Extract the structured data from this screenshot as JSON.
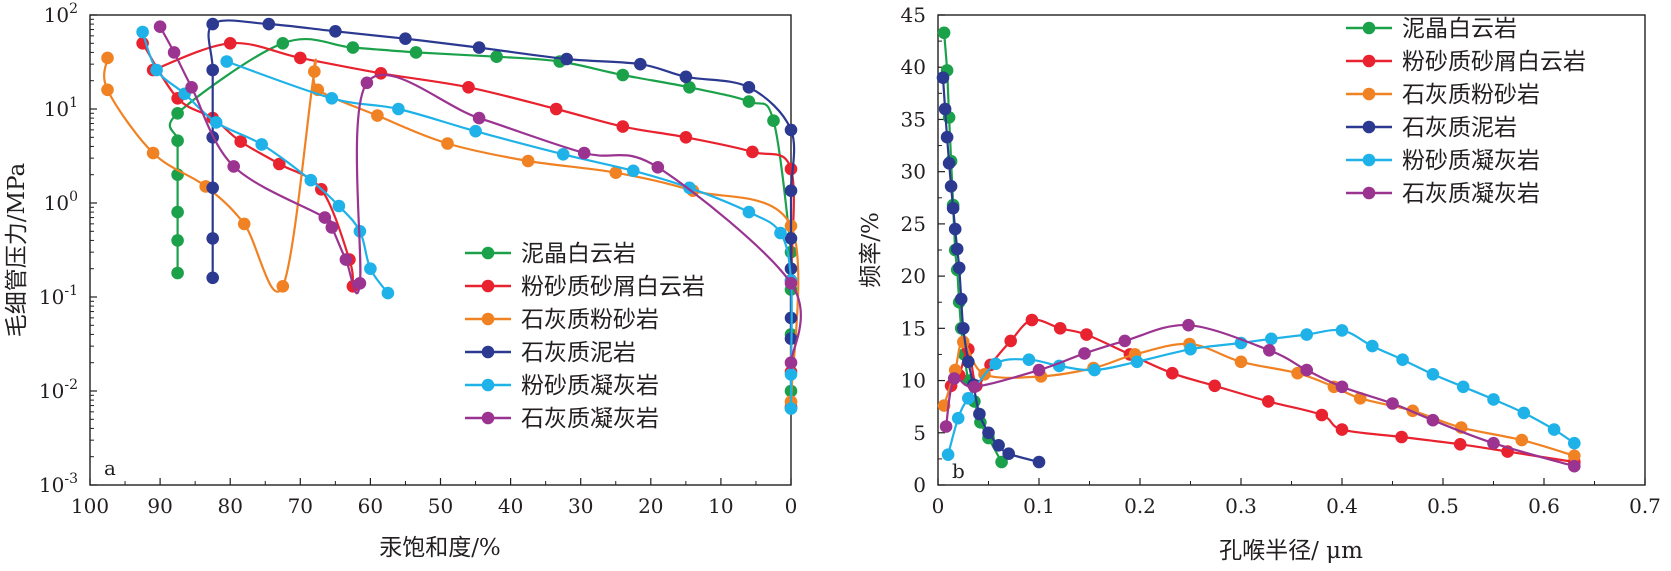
{
  "series_colors": [
    "#1aa14a",
    "#e8222f",
    "#f08224",
    "#2b3990",
    "#1fb2e8",
    "#9b3391"
  ],
  "chart_data": [
    {
      "type": "line",
      "panel_label": "a",
      "xlabel": "汞饱和度/%",
      "ylabel": "毛细管压力/MPa",
      "xlim": [
        100,
        0
      ],
      "ylim": [
        0.001,
        100
      ],
      "yscale": "log",
      "x_ticks": [
        "100",
        "90",
        "80",
        "70",
        "60",
        "50",
        "40",
        "30",
        "20",
        "10",
        "0"
      ],
      "y_ticks": [
        {
          "base": "10",
          "exp": "-3"
        },
        {
          "base": "10",
          "exp": "-2"
        },
        {
          "base": "10",
          "exp": "-1"
        },
        {
          "base": "10",
          "exp": "0"
        },
        {
          "base": "10",
          "exp": "1"
        },
        {
          "base": "10",
          "exp": "2"
        }
      ],
      "legend_position": "bottom-right",
      "series": [
        {
          "name": "泥晶白云岩",
          "x": [
            87.5,
            87.5,
            87.5,
            87.5,
            87.5,
            87.5,
            72.5,
            62.5,
            53.5,
            42,
            33,
            24,
            14.5,
            6,
            2.5,
            0,
            0,
            0,
            0,
            0
          ],
          "y": [
            0.18,
            0.4,
            0.8,
            2,
            4.6,
            9,
            50,
            45,
            40,
            36,
            32,
            23,
            17,
            12,
            7.5,
            0.3,
            0.12,
            0.04,
            0.01,
            0.0066
          ]
        },
        {
          "name": "粉砂质砂屑白云岩",
          "x": [
            92.5,
            87.5,
            82.5,
            78.5,
            73,
            67,
            63,
            62.5,
            91,
            80,
            70,
            58.5,
            46,
            33.5,
            24,
            15,
            5.5,
            0,
            0,
            0,
            0
          ],
          "y": [
            50,
            13,
            8,
            4.5,
            2.6,
            1.4,
            0.25,
            0.13,
            26,
            50,
            35,
            24,
            17,
            10,
            6.5,
            5,
            3.5,
            2.3,
            0.15,
            0.016,
            0.0068
          ]
        },
        {
          "name": "石灰质粉砂岩",
          "x": [
            97.5,
            97.5,
            91,
            83.5,
            78,
            72.5,
            68,
            67.5,
            59,
            49,
            37.5,
            25,
            14,
            0,
            0
          ],
          "y": [
            35,
            16,
            3.4,
            1.5,
            0.6,
            0.13,
            25,
            16,
            8.5,
            4.3,
            2.8,
            2.1,
            1.35,
            0.57,
            0.0077
          ]
        },
        {
          "name": "石灰质泥岩",
          "x": [
            82.5,
            82.5,
            82.5,
            82.5,
            82.5,
            82.5,
            74.5,
            65,
            55,
            44.5,
            32,
            21.5,
            15,
            6,
            0,
            0,
            0,
            0,
            0,
            0
          ],
          "y": [
            0.16,
            0.42,
            1.45,
            5,
            26,
            80,
            80,
            67,
            56,
            45,
            34,
            30,
            22,
            17,
            6,
            1.35,
            0.42,
            0.2,
            0.06,
            0.036
          ]
        },
        {
          "name": "粉砂质凝灰岩",
          "x": [
            92.5,
            90.5,
            86.5,
            82,
            75.5,
            68.5,
            64.5,
            61.5,
            60,
            57.5,
            80.5,
            65.5,
            56,
            45,
            32.5,
            22.5,
            14.5,
            6,
            1.5,
            0,
            0,
            0
          ],
          "y": [
            66,
            26,
            14.5,
            7.2,
            4.2,
            1.75,
            0.93,
            0.5,
            0.2,
            0.11,
            32,
            13,
            10,
            5.8,
            3.3,
            2.2,
            1.45,
            0.8,
            0.48,
            0.15,
            0.015,
            0.0065
          ]
        },
        {
          "name": "石灰质凝灰岩",
          "x": [
            90,
            88,
            85.5,
            79.5,
            66.5,
            65.5,
            63.5,
            61.5,
            60.5,
            44.5,
            29.5,
            19,
            0,
            0
          ],
          "y": [
            75,
            40,
            17,
            2.45,
            0.7,
            0.55,
            0.25,
            0.14,
            19,
            8,
            3.4,
            2.4,
            0.14,
            0.02
          ]
        }
      ]
    },
    {
      "type": "line",
      "panel_label": "b",
      "xlabel": "孔喉半径/ μm",
      "ylabel": "频率/%",
      "xlim": [
        0,
        0.7
      ],
      "ylim": [
        0,
        45
      ],
      "x_ticks": [
        "0",
        "0.1",
        "0.2",
        "0.3",
        "0.4",
        "0.5",
        "0.6",
        "0.7"
      ],
      "y_ticks": [
        "0",
        "5",
        "10",
        "15",
        "20",
        "25",
        "30",
        "35",
        "40",
        "45"
      ],
      "legend_position": "top-right",
      "series": [
        {
          "name": "泥晶白云岩",
          "x": [
            0.006,
            0.009,
            0.011,
            0.013,
            0.015,
            0.017,
            0.019,
            0.021,
            0.023,
            0.026,
            0.03,
            0.036,
            0.042,
            0.05,
            0.063
          ],
          "y": [
            43.3,
            39.7,
            35.2,
            31,
            26.8,
            22.5,
            20.6,
            17.5,
            15,
            12.5,
            10,
            8,
            6,
            4.5,
            2.2
          ]
        },
        {
          "name": "粉砂质砂屑白云岩",
          "x": [
            0.013,
            0.021,
            0.03,
            0.038,
            0.052,
            0.072,
            0.093,
            0.121,
            0.147,
            0.19,
            0.232,
            0.274,
            0.327,
            0.38,
            0.4,
            0.459,
            0.517,
            0.564,
            0.63
          ],
          "y": [
            9.5,
            10.5,
            13,
            9.5,
            11.5,
            13.8,
            15.8,
            15,
            14.4,
            12.5,
            10.7,
            9.5,
            8,
            6.7,
            5.3,
            4.6,
            3.9,
            3.2,
            2.2
          ]
        },
        {
          "name": "石灰质粉砂岩",
          "x": [
            0.006,
            0.017,
            0.025,
            0.046,
            0.102,
            0.154,
            0.195,
            0.249,
            0.3,
            0.356,
            0.392,
            0.418,
            0.47,
            0.518,
            0.578,
            0.63
          ],
          "y": [
            7.6,
            11,
            13.7,
            10.6,
            10.4,
            11.2,
            12.5,
            13.5,
            11.8,
            10.7,
            9.4,
            8.3,
            7.1,
            5.5,
            4.3,
            2.8
          ]
        },
        {
          "name": "石灰质泥岩",
          "x": [
            0.005,
            0.007,
            0.009,
            0.011,
            0.013,
            0.015,
            0.017,
            0.019,
            0.021,
            0.023,
            0.025,
            0.03,
            0.035,
            0.041,
            0.05,
            0.06,
            0.07,
            0.1
          ],
          "y": [
            39,
            36,
            33.3,
            30.8,
            28.6,
            26.5,
            24.5,
            22.6,
            20.8,
            17.8,
            15,
            11.8,
            9.6,
            6.8,
            5,
            3.8,
            3,
            2.2
          ]
        },
        {
          "name": "粉砂质凝灰岩",
          "x": [
            0.01,
            0.02,
            0.03,
            0.057,
            0.09,
            0.12,
            0.155,
            0.197,
            0.25,
            0.3,
            0.33,
            0.365,
            0.4,
            0.43,
            0.46,
            0.49,
            0.52,
            0.55,
            0.58,
            0.61,
            0.63
          ],
          "y": [
            2.9,
            6.4,
            8.3,
            11.6,
            12,
            11.4,
            11,
            11.8,
            13,
            13.6,
            14,
            14.4,
            14.8,
            13.3,
            12,
            10.6,
            9.4,
            8.2,
            6.9,
            5.3,
            4
          ]
        },
        {
          "name": "石灰质凝灰岩",
          "x": [
            0.008,
            0.016,
            0.036,
            0.1,
            0.145,
            0.185,
            0.248,
            0.328,
            0.365,
            0.4,
            0.45,
            0.49,
            0.55,
            0.63
          ],
          "y": [
            5.6,
            10.2,
            9.4,
            11,
            12.6,
            13.8,
            15.3,
            12.9,
            11,
            9.4,
            7.8,
            6.2,
            4,
            1.8
          ]
        }
      ]
    }
  ]
}
